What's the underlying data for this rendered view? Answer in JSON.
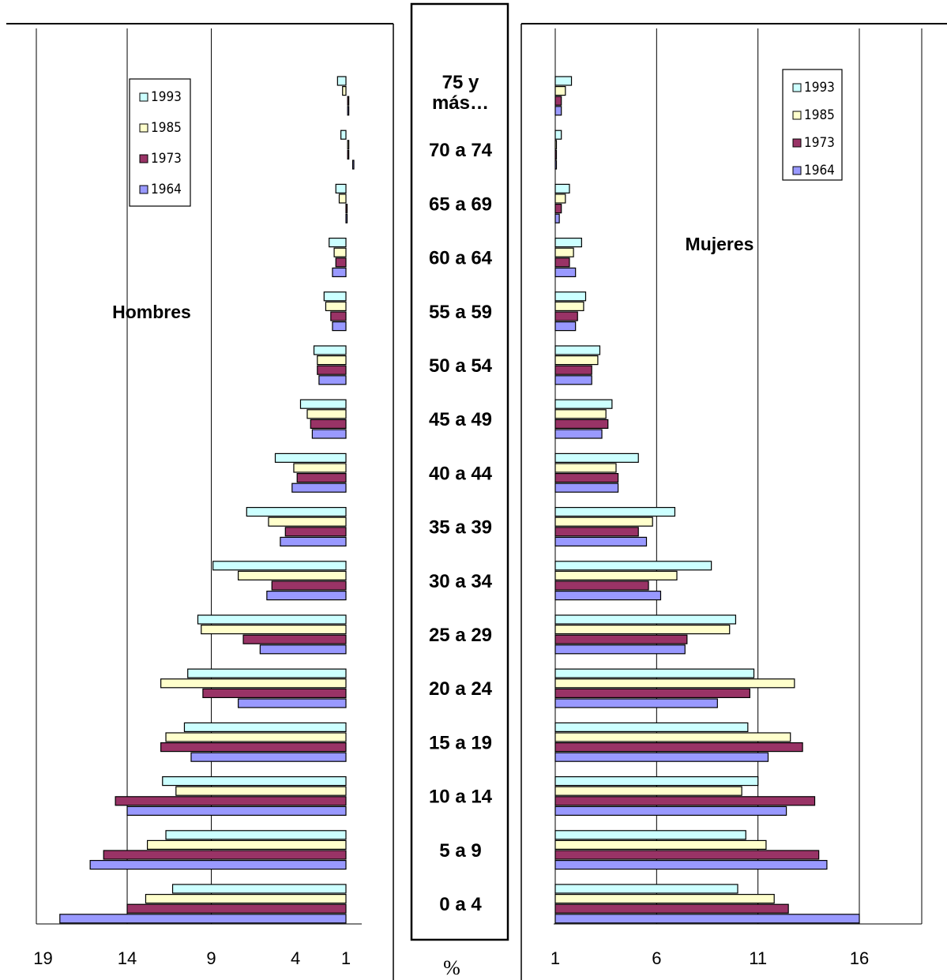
{
  "ages": [
    "0 a 4",
    "5 a 9",
    "10 a 14",
    "15 a 19",
    "20 a 24",
    "25 a 29",
    "30 a 34",
    "35 a 39",
    "40 a 44",
    "45 a 49",
    "50 a 54",
    "55 a 59",
    "60 a 64",
    "65 a 69",
    "70 a 74",
    "75 y más…"
  ],
  "age_label_lines": {
    "75 y más…": [
      "75 y",
      "más…"
    ]
  },
  "unit_label": "%",
  "colors": {
    "1993": "#ccffff",
    "1985": "#ffffcc",
    "1973": "#993366",
    "1964": "#9999ff"
  },
  "chart_data": [
    {
      "type": "bar",
      "orientation": "horizontal",
      "title": "Hombres",
      "x_direction": "reversed",
      "xlim": [
        0.5,
        19.5
      ],
      "xticks": [
        19,
        14,
        9,
        4,
        1
      ],
      "gridlines": [
        14,
        9
      ],
      "legend": "top-left",
      "legend_items": [
        "1993",
        "1985",
        "1973",
        "1964"
      ],
      "series": [
        {
          "name": "1993",
          "values": [
            11.3,
            11.7,
            11.9,
            10.6,
            10.4,
            9.8,
            8.9,
            6.9,
            5.2,
            3.7,
            2.9,
            2.3,
            2.0,
            1.6,
            1.3,
            1.5
          ]
        },
        {
          "name": "1985",
          "values": [
            12.9,
            12.8,
            11.1,
            11.7,
            12.0,
            9.6,
            7.4,
            5.6,
            4.1,
            3.3,
            2.7,
            2.2,
            1.7,
            1.4,
            0.9,
            1.2
          ]
        },
        {
          "name": "1973",
          "values": [
            14.0,
            15.4,
            14.7,
            12.0,
            9.5,
            7.1,
            5.4,
            4.6,
            3.9,
            3.1,
            2.7,
            1.9,
            1.6,
            1.0,
            0.9,
            0.9
          ]
        },
        {
          "name": "1964",
          "values": [
            18.0,
            16.2,
            14.0,
            10.2,
            7.4,
            6.1,
            5.7,
            4.9,
            4.2,
            3.0,
            2.6,
            1.8,
            1.8,
            1.0,
            0.6,
            0.9
          ]
        }
      ]
    },
    {
      "type": "bar",
      "orientation": "horizontal",
      "title": "Mujeres",
      "xlim": [
        1,
        19
      ],
      "xticks": [
        1,
        6,
        11,
        16
      ],
      "gridlines": [
        6,
        11,
        16
      ],
      "legend": "top-right",
      "legend_items": [
        "1993",
        "1985",
        "1973",
        "1964"
      ],
      "series": [
        {
          "name": "1993",
          "values": [
            10.0,
            10.4,
            11.0,
            10.5,
            10.8,
            9.9,
            8.7,
            6.9,
            5.1,
            3.8,
            3.2,
            2.5,
            2.3,
            1.7,
            1.3,
            1.8
          ]
        },
        {
          "name": "1985",
          "values": [
            11.8,
            11.4,
            10.2,
            12.6,
            12.8,
            9.6,
            7.0,
            5.8,
            4.0,
            3.5,
            3.1,
            2.4,
            1.9,
            1.5,
            1.0,
            1.5
          ]
        },
        {
          "name": "1973",
          "values": [
            12.5,
            14.0,
            13.8,
            13.2,
            10.6,
            7.5,
            5.6,
            5.1,
            4.1,
            3.6,
            2.8,
            2.1,
            1.7,
            1.3,
            1.0,
            1.3
          ]
        },
        {
          "name": "1964",
          "values": [
            16.0,
            14.4,
            12.4,
            11.5,
            9.0,
            7.4,
            6.2,
            5.5,
            4.1,
            3.3,
            2.8,
            2.0,
            2.0,
            1.2,
            1.0,
            1.3
          ]
        }
      ]
    }
  ]
}
